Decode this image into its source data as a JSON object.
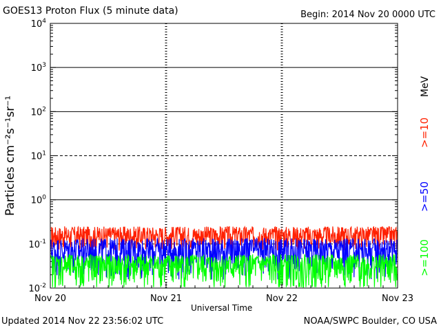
{
  "header": {
    "title": "GOES13 Proton Flux (5 minute data)",
    "begin": "Begin: 2014 Nov 20 0000 UTC"
  },
  "footer": {
    "updated": "Updated 2014 Nov 22 23:56:02 UTC",
    "credit": "NOAA/SWPC Boulder, CO USA"
  },
  "chart_data": {
    "type": "line",
    "title": "GOES13 Proton Flux (5 minute data)",
    "xlabel": "Universal Time",
    "ylabel": "Particles cm⁻²s⁻¹sr⁻¹",
    "yscale": "log",
    "ylim": [
      0.01,
      10000
    ],
    "y_ticks": [
      {
        "mant": "10",
        "exp": "-2",
        "value": 0.01
      },
      {
        "mant": "10",
        "exp": "-1",
        "value": 0.1
      },
      {
        "mant": "10",
        "exp": "0",
        "value": 1
      },
      {
        "mant": "10",
        "exp": "1",
        "value": 10
      },
      {
        "mant": "10",
        "exp": "2",
        "value": 100
      },
      {
        "mant": "10",
        "exp": "3",
        "value": 1000
      },
      {
        "mant": "10",
        "exp": "4",
        "value": 10000
      }
    ],
    "x_ticks": [
      "Nov 20",
      "Nov 21",
      "Nov 22",
      "Nov 23"
    ],
    "xlim": [
      "2014-11-20",
      "2014-11-23"
    ],
    "thresholds": [
      {
        "value": 1000,
        "style": "solid"
      },
      {
        "value": 100,
        "style": "solid"
      },
      {
        "value": 10,
        "style": "dashed"
      },
      {
        "value": 1,
        "style": "solid"
      },
      {
        "value": 0.1,
        "style": "dashed"
      }
    ],
    "units_label": "MeV",
    "series": [
      {
        "name": ">=10",
        "color": "#ff2000",
        "base": 0.16,
        "spread": 0.09
      },
      {
        "name": ">=50",
        "color": "#0000ff",
        "base": 0.075,
        "spread": 0.06
      },
      {
        "name": ">=100",
        "color": "#00ff00",
        "base": 0.033,
        "spread": 0.025
      }
    ]
  }
}
